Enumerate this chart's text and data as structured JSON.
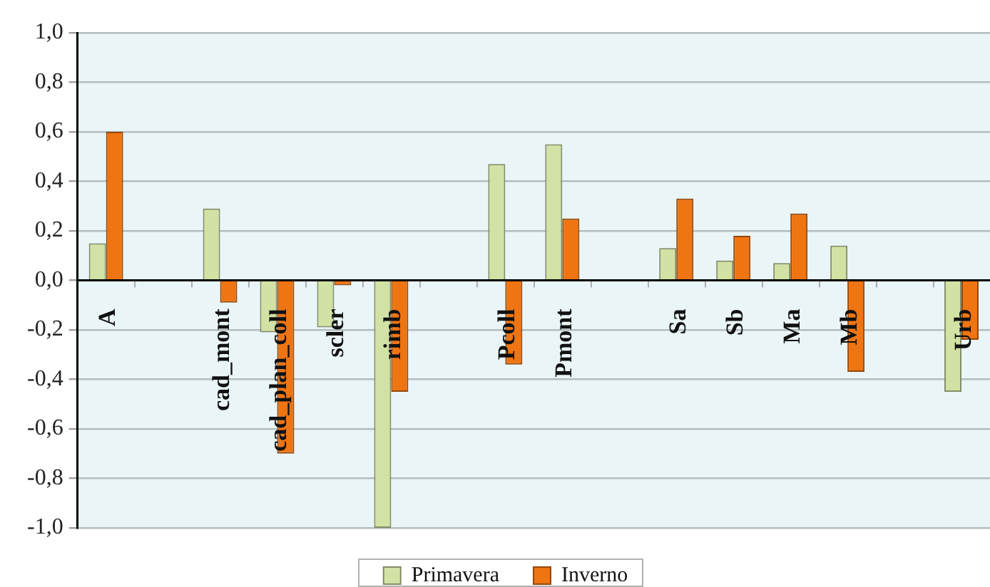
{
  "chart_data": {
    "type": "bar",
    "categories": [
      "A",
      null,
      "cad_mont",
      "cad_plan_coll",
      "scler",
      "rimb",
      null,
      "Pcoll",
      "Pmont",
      null,
      "Sa",
      "Sb",
      "Ma",
      "Mb",
      null,
      "Urb"
    ],
    "series": [
      {
        "name": "Primavera",
        "color": "#d2e2a4",
        "values": [
          0.15,
          null,
          0.29,
          -0.21,
          -0.19,
          -1.0,
          null,
          0.47,
          0.55,
          null,
          0.13,
          0.08,
          0.07,
          0.14,
          null,
          -0.45
        ]
      },
      {
        "name": "Inverno",
        "color": "#ef7412",
        "values": [
          0.6,
          null,
          -0.09,
          -0.7,
          -0.02,
          -0.45,
          null,
          -0.34,
          0.25,
          null,
          0.33,
          0.18,
          0.27,
          -0.37,
          null,
          -0.24
        ]
      }
    ],
    "ylim": [
      -1,
      1
    ],
    "yticks": [
      {
        "value": -1,
        "label": "-1,0"
      },
      {
        "value": -0.8,
        "label": "-0,8"
      },
      {
        "value": -0.6,
        "label": "-0,6"
      },
      {
        "value": -0.4,
        "label": "-0,4"
      },
      {
        "value": -0.2,
        "label": "-0,2"
      },
      {
        "value": 0,
        "label": "0,0"
      },
      {
        "value": 0.2,
        "label": "0,2"
      },
      {
        "value": 0.4,
        "label": "0,4"
      },
      {
        "value": 0.6,
        "label": "0,6"
      },
      {
        "value": 0.8,
        "label": "0,8"
      },
      {
        "value": 1,
        "label": "1,0"
      }
    ],
    "grid": "y",
    "legend": "bottom"
  }
}
